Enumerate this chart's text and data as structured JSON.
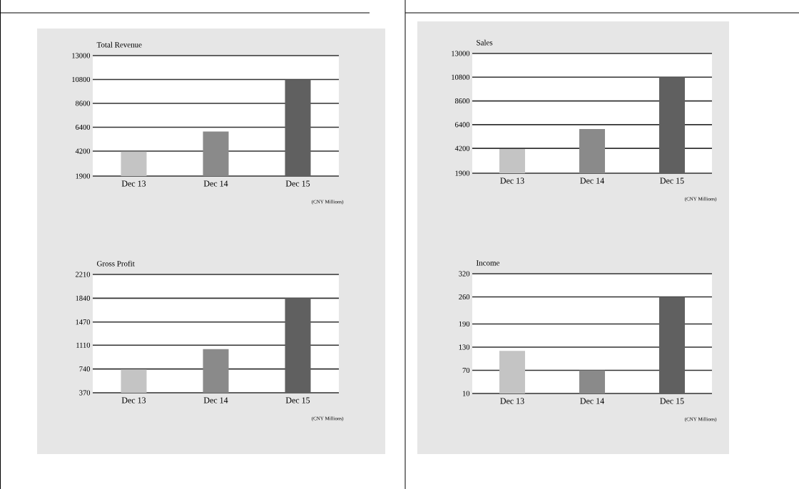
{
  "chart_data": [
    {
      "type": "bar",
      "title": "Total Revenue",
      "categories": [
        "Dec 13",
        "Dec 14",
        "Dec 15"
      ],
      "values": [
        4150,
        6000,
        10800
      ],
      "colors": [
        "#c4c4c4",
        "#8a8a8a",
        "#606060"
      ],
      "ylim": [
        1900,
        13000
      ],
      "yticks": [
        1900,
        4200,
        6400,
        8600,
        10800,
        13000
      ],
      "grid": "y",
      "annotations": [
        "(CNY Millions)"
      ]
    },
    {
      "type": "bar",
      "title": "Sales",
      "categories": [
        "Dec 13",
        "Dec 14",
        "Dec 15"
      ],
      "values": [
        4150,
        6000,
        10800
      ],
      "colors": [
        "#c4c4c4",
        "#8a8a8a",
        "#606060"
      ],
      "ylim": [
        1900,
        13000
      ],
      "yticks": [
        1900,
        4200,
        6400,
        8600,
        10800,
        13000
      ],
      "grid": "y",
      "annotations": [
        "(CNY Millions)"
      ]
    },
    {
      "type": "bar",
      "title": "Gross Profit",
      "categories": [
        "Dec 13",
        "Dec 14",
        "Dec 15"
      ],
      "values": [
        730,
        1050,
        1840
      ],
      "colors": [
        "#c4c4c4",
        "#8a8a8a",
        "#606060"
      ],
      "ylim": [
        370,
        2210
      ],
      "yticks": [
        370,
        740,
        1110,
        1470,
        1840,
        2210
      ],
      "grid": "y",
      "annotations": [
        "(CNY Millions)"
      ]
    },
    {
      "type": "bar",
      "title": "Income",
      "categories": [
        "Dec 13",
        "Dec 14",
        "Dec 15"
      ],
      "values": [
        120,
        70,
        260
      ],
      "colors": [
        "#c4c4c4",
        "#8a8a8a",
        "#606060"
      ],
      "ylim": [
        10,
        320
      ],
      "yticks": [
        10,
        70,
        130,
        190,
        260,
        320
      ],
      "grid": "y",
      "annotations": [
        "(CNY Millions)"
      ]
    }
  ]
}
